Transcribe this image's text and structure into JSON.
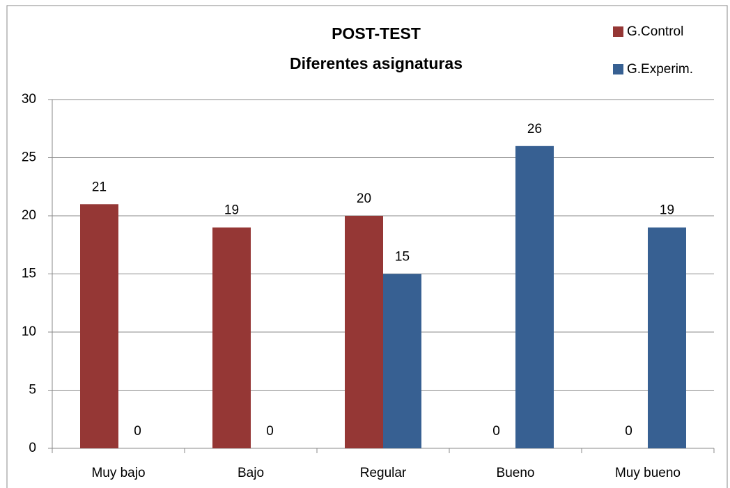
{
  "chart_data": {
    "type": "bar",
    "title": "POST-TEST",
    "subtitle": "Diferentes asignaturas",
    "categories": [
      "Muy bajo",
      "Bajo",
      "Regular",
      "Bueno",
      "Muy bueno"
    ],
    "series": [
      {
        "name": "G.Control",
        "color": "#953735",
        "values": [
          21,
          19,
          20,
          0,
          0
        ]
      },
      {
        "name": "G.Experim.",
        "color": "#376092",
        "values": [
          0,
          0,
          15,
          26,
          19
        ]
      }
    ],
    "ylim": [
      0,
      30
    ],
    "yticks": [
      0,
      5,
      10,
      15,
      20,
      25,
      30
    ],
    "grid": true,
    "legend": "top-right"
  }
}
